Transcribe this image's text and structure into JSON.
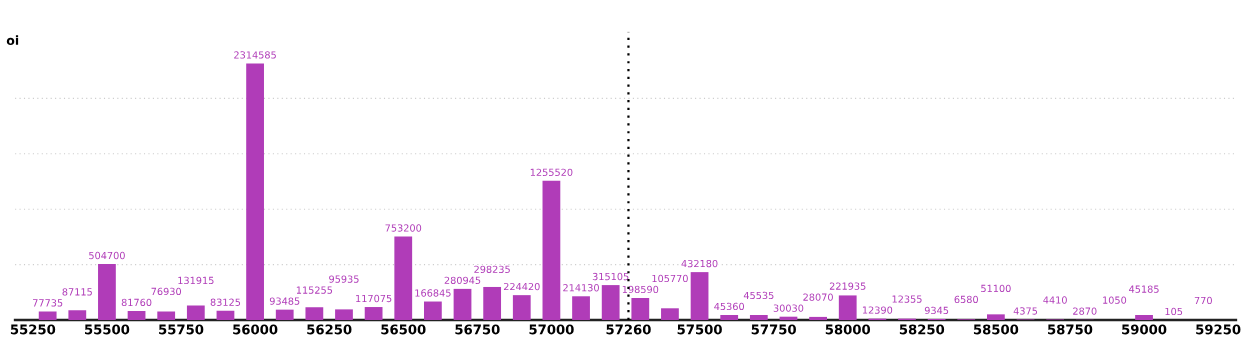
{
  "chart_data": {
    "type": "bar",
    "ylabel": "oi",
    "x": [
      55300,
      55400,
      55500,
      55600,
      55700,
      55800,
      55900,
      56000,
      56100,
      56200,
      56300,
      56400,
      56500,
      56600,
      56700,
      56800,
      56900,
      57000,
      57100,
      57200,
      57300,
      57400,
      57500,
      57600,
      57700,
      57800,
      57900,
      58000,
      58100,
      58200,
      58300,
      58400,
      58500,
      58600,
      58700,
      58800,
      58900,
      59000,
      59100,
      59200
    ],
    "values": [
      77735,
      87115,
      504700,
      81760,
      76930,
      131915,
      83125,
      2314585,
      93485,
      115255,
      95935,
      117075,
      753200,
      166845,
      280945,
      298235,
      224420,
      1255520,
      214130,
      315105,
      198590,
      105770,
      432180,
      45360,
      45535,
      30030,
      28070,
      221935,
      12390,
      12355,
      9345,
      6580,
      51100,
      4375,
      4410,
      2870,
      1050,
      45185,
      105,
      770
    ],
    "color": "#b03cb8",
    "data_labels": true,
    "xlim": [
      55190,
      59310
    ],
    "xticks": [
      55250,
      55500,
      55750,
      56000,
      56250,
      56500,
      56750,
      57000,
      57260,
      57500,
      57750,
      58000,
      58250,
      58500,
      58750,
      59000,
      59250
    ],
    "ylim": [
      0,
      2600000
    ],
    "yticks": [
      {
        "value": 500000,
        "label": null
      },
      {
        "value": 1000000,
        "label": null
      },
      {
        "value": 1500000,
        "label": null
      },
      {
        "value": 2000000,
        "label": null
      }
    ],
    "tick_labels": "x",
    "grid": "y",
    "ref_lines": [
      {
        "axis": "x",
        "value": 57260,
        "color": "#000000",
        "line_style": "dotted"
      }
    ]
  }
}
